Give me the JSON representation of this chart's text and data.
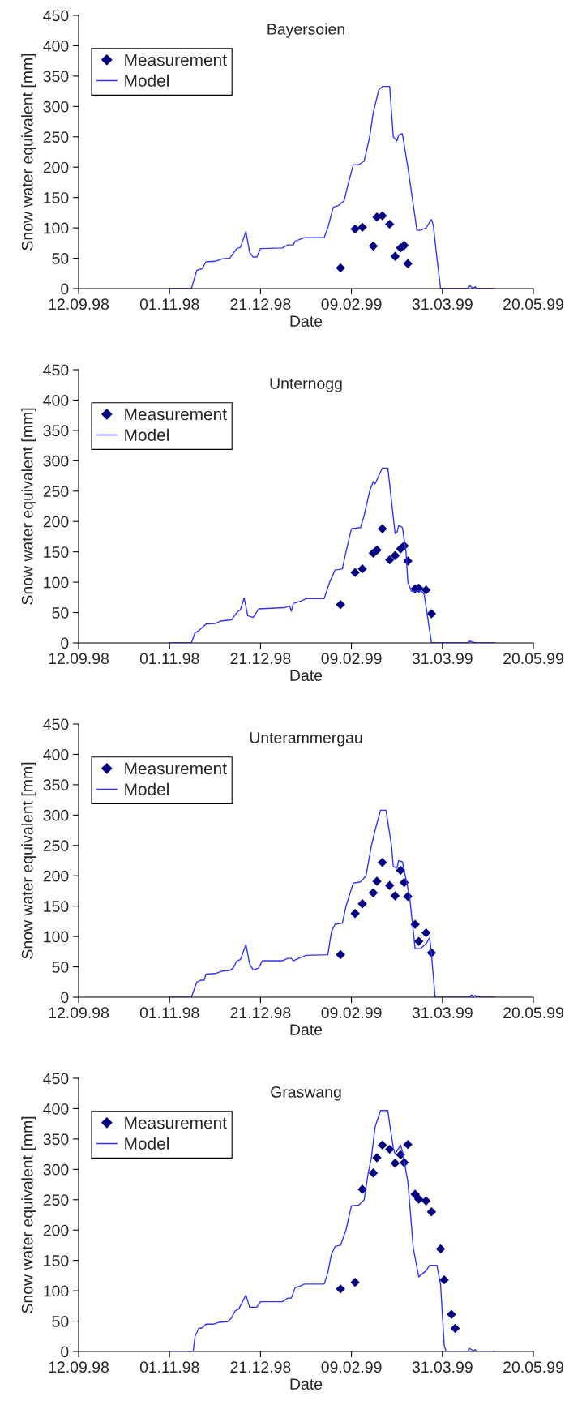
{
  "chart_data": [
    {
      "type": "line",
      "title": "Bayersoien",
      "xlabel": "Date",
      "ylabel": "Snow water equivalent [mm]",
      "xlim": [
        "1998-09-12",
        "1999-05-20"
      ],
      "xticks": [
        {
          "value": "1998-09-12",
          "label": "12.09.98"
        },
        {
          "value": "1998-11-01",
          "label": "01.11.98"
        },
        {
          "value": "1998-12-21",
          "label": "21.12.98"
        },
        {
          "value": "1999-02-09",
          "label": "09.02.99"
        },
        {
          "value": "1999-03-31",
          "label": "31.03.99"
        },
        {
          "value": "1999-05-20",
          "label": "20.05.99"
        }
      ],
      "ylim": [
        0,
        450
      ],
      "yticks": [
        0,
        50,
        100,
        150,
        200,
        250,
        300,
        350,
        400,
        450
      ],
      "grid": false,
      "legend": "top left",
      "series": [
        {
          "name": "Measurement",
          "type": "scatter",
          "marker": "diamond",
          "color": "#000080",
          "x": [
            "1999-02-03",
            "1999-02-11",
            "1999-02-15",
            "1999-02-21",
            "1999-02-23",
            "1999-02-26",
            "1999-03-02",
            "1999-03-05",
            "1999-03-08",
            "1999-03-10",
            "1999-03-12"
          ],
          "values": [
            34,
            98,
            101,
            70,
            118,
            120,
            106,
            53,
            67,
            71,
            41
          ]
        },
        {
          "name": "Model",
          "marker": "none",
          "color": "#3333ff",
          "x": [
            "1998-11-01",
            "1998-11-13",
            "1998-11-16",
            "1998-11-19",
            "1998-11-21",
            "1998-11-26",
            "1998-11-30",
            "1998-12-04",
            "1998-12-08",
            "1998-12-10",
            "1998-12-13",
            "1998-12-15",
            "1998-12-17",
            "1998-12-19",
            "1998-12-21",
            "1999-01-02",
            "1999-01-05",
            "1999-01-08",
            "1999-01-09",
            "1999-01-14",
            "1999-01-25",
            "1999-01-27",
            "1999-01-30",
            "1999-02-02",
            "1999-02-05",
            "1999-02-07",
            "1999-02-10",
            "1999-02-13",
            "1999-02-16",
            "1999-02-19",
            "1999-02-21",
            "1999-02-24",
            "1999-02-26",
            "1999-03-02",
            "1999-03-04",
            "1999-03-06",
            "1999-03-07",
            "1999-03-09",
            "1999-03-12",
            "1999-03-17",
            "1999-03-19",
            "1999-03-22",
            "1999-03-25",
            "1999-03-26",
            "1999-03-28",
            "1999-03-30",
            "1999-04-14",
            "1999-04-15",
            "1999-04-17",
            "1999-04-18",
            "1999-04-19",
            "1999-04-29"
          ],
          "values": [
            0,
            0,
            30,
            33,
            44,
            45,
            49,
            50,
            66,
            68,
            94,
            60,
            52,
            52,
            66,
            67,
            72,
            72,
            78,
            84,
            84,
            100,
            134,
            137,
            145,
            170,
            204,
            204,
            210,
            250,
            290,
            327,
            333,
            333,
            250,
            243,
            253,
            255,
            200,
            96,
            96,
            100,
            114,
            104,
            50,
            0,
            0,
            5,
            0,
            3,
            0,
            0
          ]
        }
      ]
    },
    {
      "type": "line",
      "title": "Unternogg",
      "xlabel": "Date",
      "ylabel": "Snow water equivalent [mm]",
      "xlim": [
        "1998-09-12",
        "1999-05-20"
      ],
      "xticks": [
        {
          "value": "1998-09-12",
          "label": "12.09.98"
        },
        {
          "value": "1998-11-01",
          "label": "01.11.98"
        },
        {
          "value": "1998-12-21",
          "label": "21.12.98"
        },
        {
          "value": "1999-02-09",
          "label": "09.02.99"
        },
        {
          "value": "1999-03-31",
          "label": "31.03.99"
        },
        {
          "value": "1999-05-20",
          "label": "20.05.99"
        }
      ],
      "ylim": [
        0,
        450
      ],
      "yticks": [
        0,
        50,
        100,
        150,
        200,
        250,
        300,
        350,
        400,
        450
      ],
      "grid": false,
      "legend": "top left",
      "series": [
        {
          "name": "Measurement",
          "type": "scatter",
          "marker": "diamond",
          "color": "#000080",
          "x": [
            "1999-02-03",
            "1999-02-11",
            "1999-02-15",
            "1999-02-21",
            "1999-02-23",
            "1999-02-26",
            "1999-03-02",
            "1999-03-05",
            "1999-03-08",
            "1999-03-10",
            "1999-03-12",
            "1999-03-16",
            "1999-03-18",
            "1999-03-22",
            "1999-03-25"
          ],
          "values": [
            63,
            116,
            122,
            148,
            153,
            188,
            137,
            144,
            155,
            160,
            135,
            89,
            90,
            87,
            48
          ]
        },
        {
          "name": "Model",
          "marker": "none",
          "color": "#3333ff",
          "x": [
            "1998-11-01",
            "1998-11-13",
            "1998-11-15",
            "1998-11-17",
            "1998-11-21",
            "1998-11-26",
            "1998-11-29",
            "1998-12-05",
            "1998-12-08",
            "1998-12-10",
            "1998-12-12",
            "1998-12-14",
            "1998-12-17",
            "1998-12-20",
            "1999-01-03",
            "1999-01-06",
            "1999-01-07",
            "1999-01-08",
            "1999-01-13",
            "1999-01-15",
            "1999-01-25",
            "1999-01-28",
            "1999-01-31",
            "1999-02-04",
            "1999-02-06",
            "1999-02-09",
            "1999-02-14",
            "1999-02-16",
            "1999-02-19",
            "1999-02-21",
            "1999-02-22",
            "1999-02-26",
            "1999-03-01",
            "1999-03-05",
            "1999-03-06",
            "1999-03-07",
            "1999-03-09",
            "1999-03-11",
            "1999-03-12",
            "1999-03-14",
            "1999-03-19",
            "1999-03-21",
            "1999-03-25",
            "1999-04-14",
            "1999-04-15",
            "1999-04-17",
            "1999-04-19",
            "1999-04-29"
          ],
          "values": [
            0,
            0,
            17,
            20,
            31,
            32,
            36,
            38,
            50,
            55,
            74,
            45,
            42,
            56,
            58,
            61,
            52,
            65,
            70,
            73,
            73,
            100,
            120,
            122,
            150,
            188,
            190,
            210,
            250,
            266,
            262,
            288,
            288,
            180,
            182,
            193,
            190,
            150,
            100,
            85,
            86,
            80,
            0,
            0,
            3,
            1,
            0,
            0
          ]
        }
      ]
    },
    {
      "type": "line",
      "title": "Unterammergau",
      "xlabel": "Date",
      "ylabel": "Snow water equivalent [mm]",
      "xlim": [
        "1998-09-12",
        "1999-05-20"
      ],
      "xticks": [
        {
          "value": "1998-09-12",
          "label": "12.09.98"
        },
        {
          "value": "1998-11-01",
          "label": "01.11.98"
        },
        {
          "value": "1998-12-21",
          "label": "21.12.98"
        },
        {
          "value": "1999-02-09",
          "label": "09.02.99"
        },
        {
          "value": "1999-03-31",
          "label": "31.03.99"
        },
        {
          "value": "1999-05-20",
          "label": "20.05.99"
        }
      ],
      "ylim": [
        0,
        450
      ],
      "yticks": [
        0,
        50,
        100,
        150,
        200,
        250,
        300,
        350,
        400,
        450
      ],
      "grid": false,
      "legend": "top left",
      "series": [
        {
          "name": "Measurement",
          "type": "scatter",
          "marker": "diamond",
          "color": "#000080",
          "x": [
            "1999-02-03",
            "1999-02-11",
            "1999-02-15",
            "1999-02-21",
            "1999-02-23",
            "1999-02-26",
            "1999-03-02",
            "1999-03-05",
            "1999-03-08",
            "1999-03-10",
            "1999-03-12",
            "1999-03-16",
            "1999-03-18",
            "1999-03-22",
            "1999-03-25"
          ],
          "values": [
            70,
            138,
            154,
            172,
            191,
            222,
            184,
            167,
            209,
            189,
            166,
            120,
            92,
            106,
            73
          ]
        },
        {
          "name": "Model",
          "marker": "none",
          "color": "#3333ff",
          "x": [
            "1998-11-01",
            "1998-11-13",
            "1998-11-16",
            "1998-11-18",
            "1998-11-20",
            "1998-11-21",
            "1998-11-26",
            "1998-11-30",
            "1998-12-04",
            "1998-12-06",
            "1998-12-08",
            "1998-12-10",
            "1998-12-13",
            "1998-12-15",
            "1998-12-17",
            "1998-12-20",
            "1998-12-22",
            "1999-01-02",
            "1999-01-05",
            "1999-01-07",
            "1999-01-08",
            "1999-01-11",
            "1999-01-15",
            "1999-01-27",
            "1999-01-29",
            "1999-01-31",
            "1999-02-04",
            "1999-02-06",
            "1999-02-10",
            "1999-02-14",
            "1999-02-17",
            "1999-02-20",
            "1999-02-22",
            "1999-02-25",
            "1999-02-28",
            "1999-03-03",
            "1999-03-04",
            "1999-03-06",
            "1999-03-07",
            "1999-03-09",
            "1999-03-13",
            "1999-03-16",
            "1999-03-19",
            "1999-03-22",
            "1999-03-24",
            "1999-03-25",
            "1999-03-27",
            "1999-04-15",
            "1999-04-16",
            "1999-04-17",
            "1999-04-18",
            "1999-04-19",
            "1999-04-29"
          ],
          "values": [
            0,
            0,
            25,
            28,
            28,
            38,
            39,
            43,
            44,
            48,
            60,
            62,
            87,
            55,
            45,
            48,
            60,
            60,
            64,
            64,
            60,
            64,
            69,
            70,
            108,
            120,
            122,
            150,
            188,
            190,
            200,
            250,
            275,
            308,
            308,
            250,
            215,
            213,
            225,
            223,
            165,
            80,
            80,
            88,
            98,
            70,
            0,
            0,
            4,
            1,
            3,
            0,
            0
          ]
        }
      ]
    },
    {
      "type": "line",
      "title": "Graswang",
      "xlabel": "Date",
      "ylabel": "Snow water equivalent [mm]",
      "xlim": [
        "1998-09-12",
        "1999-05-20"
      ],
      "xticks": [
        {
          "value": "1998-09-12",
          "label": "12.09.98"
        },
        {
          "value": "1998-11-01",
          "label": "01.11.98"
        },
        {
          "value": "1998-12-21",
          "label": "21.12.98"
        },
        {
          "value": "1999-02-09",
          "label": "09.02.99"
        },
        {
          "value": "1999-03-31",
          "label": "31.03.99"
        },
        {
          "value": "1999-05-20",
          "label": "20.05.99"
        }
      ],
      "ylim": [
        0,
        450
      ],
      "yticks": [
        0,
        50,
        100,
        150,
        200,
        250,
        300,
        350,
        400,
        450
      ],
      "grid": false,
      "legend": "top left",
      "series": [
        {
          "name": "Measurement",
          "type": "scatter",
          "marker": "diamond",
          "color": "#000080",
          "x": [
            "1999-02-03",
            "1999-02-11",
            "1999-02-15",
            "1999-02-21",
            "1999-02-23",
            "1999-02-26",
            "1999-03-02",
            "1999-03-05",
            "1999-03-08",
            "1999-03-10",
            "1999-03-12",
            "1999-03-16",
            "1999-03-18",
            "1999-03-22",
            "1999-03-25",
            "1999-03-30",
            "1999-04-01",
            "1999-04-05",
            "1999-04-07"
          ],
          "values": [
            103,
            114,
            267,
            294,
            319,
            340,
            333,
            310,
            324,
            311,
            341,
            259,
            251,
            248,
            230,
            169,
            118,
            61,
            38
          ]
        },
        {
          "name": "Model",
          "marker": "none",
          "color": "#3333ff",
          "x": [
            "1998-11-01",
            "1998-11-14",
            "1998-11-15",
            "1998-11-17",
            "1998-11-19",
            "1998-11-21",
            "1998-11-25",
            "1998-11-28",
            "1998-12-03",
            "1998-12-05",
            "1998-12-07",
            "1998-12-09",
            "1998-12-13",
            "1998-12-15",
            "1998-12-19",
            "1998-12-21",
            "1999-01-02",
            "1999-01-05",
            "1999-01-07",
            "1999-01-09",
            "1999-01-12",
            "1999-01-14",
            "1999-01-25",
            "1999-01-27",
            "1999-01-29",
            "1999-01-31",
            "1999-02-03",
            "1999-02-06",
            "1999-02-09",
            "1999-02-13",
            "1999-02-16",
            "1999-02-18",
            "1999-02-20",
            "1999-02-22",
            "1999-02-25",
            "1999-03-01",
            "1999-03-02",
            "1999-03-04",
            "1999-03-05",
            "1999-03-06",
            "1999-03-08",
            "1999-03-09",
            "1999-03-12",
            "1999-03-15",
            "1999-03-18",
            "1999-03-20",
            "1999-03-22",
            "1999-03-24",
            "1999-03-28",
            "1999-03-30",
            "1999-04-01",
            "1999-04-02",
            "1999-04-14",
            "1999-04-15",
            "1999-04-17",
            "1999-04-18",
            "1999-04-19",
            "1999-04-29"
          ],
          "values": [
            0,
            0,
            25,
            38,
            39,
            45,
            45,
            48,
            49,
            55,
            67,
            70,
            93,
            73,
            73,
            82,
            82,
            88,
            88,
            105,
            108,
            111,
            111,
            130,
            160,
            173,
            175,
            200,
            240,
            241,
            250,
            290,
            320,
            370,
            397,
            397,
            375,
            335,
            325,
            330,
            340,
            330,
            280,
            170,
            123,
            128,
            133,
            142,
            142,
            110,
            10,
            0,
            0,
            5,
            1,
            3,
            0,
            0
          ]
        }
      ]
    }
  ]
}
